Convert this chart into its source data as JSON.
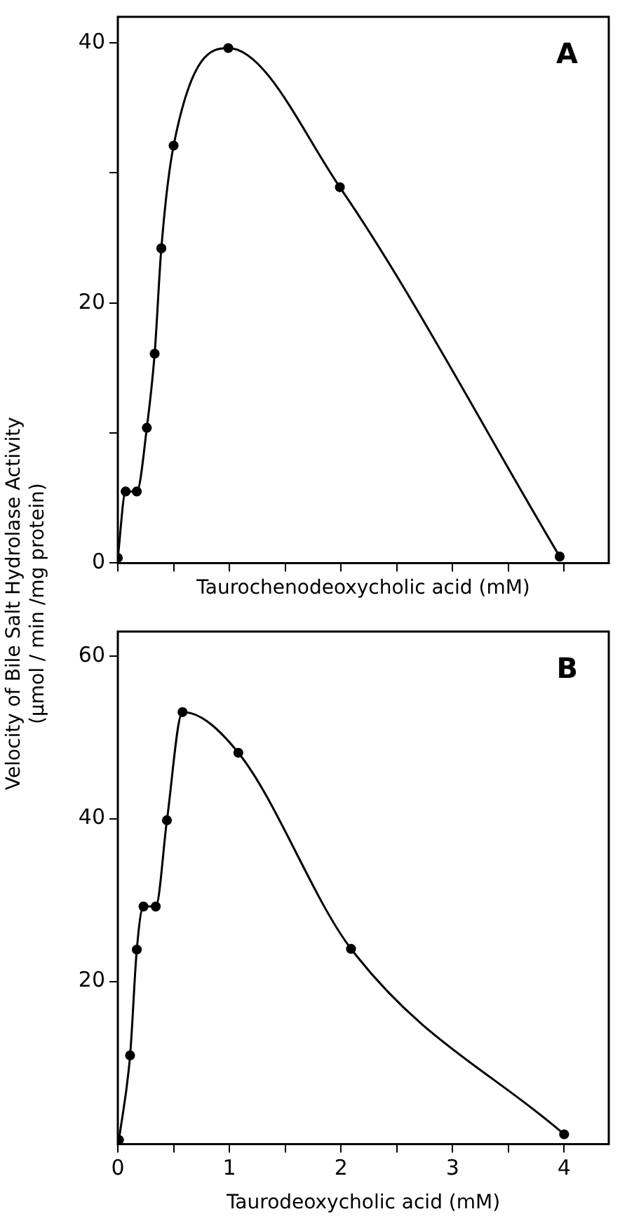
{
  "chart_data": [
    {
      "type": "line",
      "ylabel": "Velocity of Bile Salt Hydrolase Activity\n(μmol / min /mg protein)",
      "xlabel": "Taurochenodeoxycholic acid (mM)",
      "annotations": [
        "A"
      ],
      "x": [
        0,
        0.07,
        0.17,
        0.26,
        0.33,
        0.39,
        0.5,
        0.99,
        1.99,
        3.96
      ],
      "series": [
        {
          "color": "#000000",
          "values": [
            0.4,
            5.5,
            5.5,
            10.4,
            16.1,
            24.2,
            32.1,
            39.6,
            28.9,
            0.5
          ]
        }
      ],
      "xlim": [
        0,
        4.4
      ],
      "ylim": [
        0,
        42
      ],
      "xticks": [
        {
          "value": 0,
          "label": null
        },
        {
          "value": 0.5,
          "label": null
        },
        {
          "value": 1,
          "label": null
        },
        {
          "value": 1.5,
          "label": null
        },
        {
          "value": 2,
          "label": null
        },
        {
          "value": 2.5,
          "label": null
        },
        {
          "value": 3,
          "label": null
        },
        {
          "value": 3.5,
          "label": null
        },
        {
          "value": 4,
          "label": null
        }
      ],
      "yticks": [
        0,
        {
          "value": 10,
          "label": null
        },
        20,
        {
          "value": 30,
          "label": null
        },
        40
      ],
      "tick_labels": "y",
      "grid": false,
      "marker": "circle",
      "legend": false
    },
    {
      "type": "line",
      "xlabel": "Taurodeoxycholic acid (mM)",
      "annotations": [
        "B"
      ],
      "x": [
        0.01,
        0.11,
        0.17,
        0.23,
        0.34,
        0.44,
        0.58,
        1.08,
        2.09,
        4.0
      ],
      "series": [
        {
          "color": "#000000",
          "values": [
            0.5,
            10.9,
            23.9,
            29.2,
            29.2,
            39.8,
            53.1,
            48.1,
            24.0,
            1.2
          ]
        }
      ],
      "xlim": [
        0,
        4.4
      ],
      "ylim": [
        0,
        63
      ],
      "xticks": [
        0,
        {
          "value": 0.5,
          "label": null
        },
        1,
        {
          "value": 1.5,
          "label": null
        },
        2,
        {
          "value": 2.5,
          "label": null
        },
        3,
        {
          "value": 3.5,
          "label": null
        },
        4
      ],
      "yticks": [
        20,
        40,
        60
      ],
      "grid": false,
      "marker": "circle",
      "legend": false
    }
  ]
}
